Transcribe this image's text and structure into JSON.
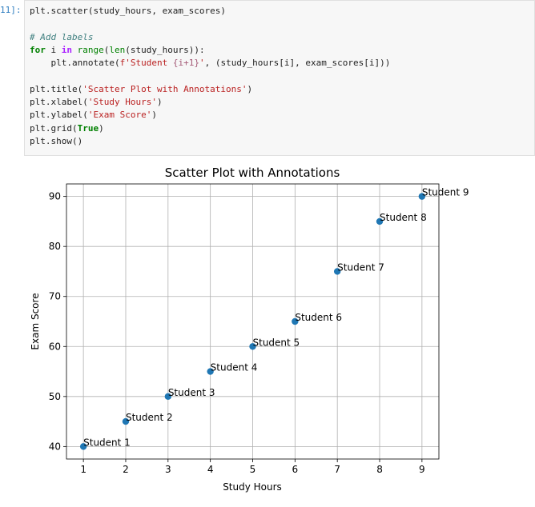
{
  "cell": {
    "prompt": "11]:",
    "code_lines": [
      "plt.scatter(study_hours, exam_scores)",
      "",
      "# Add labels",
      "for i in range(len(study_hours)):",
      "    plt.annotate(f'Student {i+1}', (study_hours[i], exam_scores[i]))",
      "",
      "plt.title('Scatter Plot with Annotations')",
      "plt.xlabel('Study Hours')",
      "plt.ylabel('Exam Score')",
      "plt.grid(True)",
      "plt.show()"
    ]
  },
  "chart_data": {
    "type": "scatter",
    "title": "Scatter Plot with Annotations",
    "xlabel": "Study Hours",
    "ylabel": "Exam Score",
    "x": [
      1,
      2,
      3,
      4,
      5,
      6,
      7,
      8,
      9
    ],
    "y": [
      40,
      45,
      50,
      55,
      60,
      65,
      75,
      85,
      90
    ],
    "annotations": [
      "Student 1",
      "Student 2",
      "Student 3",
      "Student 4",
      "Student 5",
      "Student 6",
      "Student 7",
      "Student 8",
      "Student 9"
    ],
    "xticks": [
      1,
      2,
      3,
      4,
      5,
      6,
      7,
      8,
      9
    ],
    "yticks": [
      40,
      50,
      60,
      70,
      80,
      90
    ],
    "xlim": [
      0.6,
      9.4
    ],
    "ylim": [
      37.5,
      92.5
    ],
    "grid": true,
    "marker_color": "#1f77b4"
  }
}
